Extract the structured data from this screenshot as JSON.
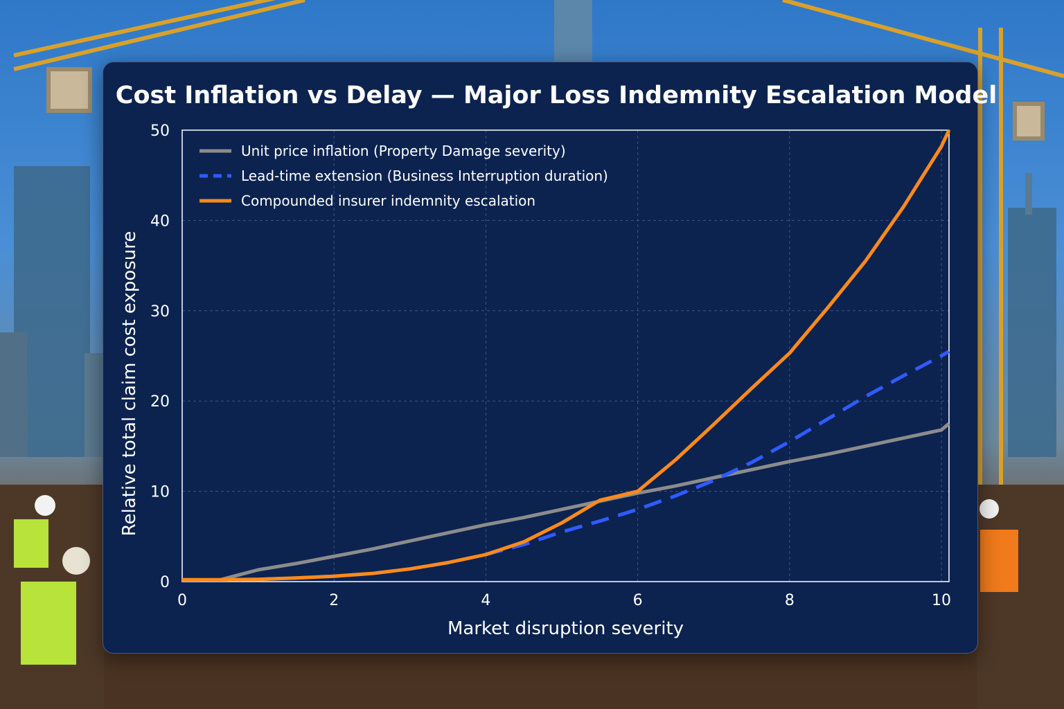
{
  "chart_data": {
    "type": "line",
    "title": "Cost Inflation vs Delay — Major Loss Indemnity Escalation Model",
    "xlabel": "Market disruption severity",
    "ylabel": "Relative total claim cost exposure",
    "xlim": [
      0,
      10.1
    ],
    "ylim": [
      0,
      50
    ],
    "xticks": [
      0,
      2,
      4,
      6,
      8,
      10
    ],
    "yticks": [
      0,
      10,
      20,
      30,
      40,
      50
    ],
    "grid": true,
    "legend_position": "top-left",
    "x": [
      0,
      0.5,
      1,
      1.5,
      2,
      2.5,
      3,
      3.5,
      4,
      4.5,
      5,
      5.5,
      6,
      6.5,
      7,
      7.5,
      8,
      8.5,
      9,
      9.5,
      10,
      10.1
    ],
    "series": [
      {
        "name": "Unit price inflation (Property Damage severity)",
        "color": "#8c8c8c",
        "style": "solid",
        "values": [
          0.2,
          0.2,
          1.3,
          2.0,
          2.8,
          3.6,
          4.5,
          5.4,
          6.3,
          7.1,
          8.0,
          8.9,
          9.8,
          10.6,
          11.5,
          12.4,
          13.3,
          14.1,
          15.0,
          15.9,
          16.8,
          17.5
        ]
      },
      {
        "name": "Lead-time extension (Business Interruption duration)",
        "color": "#2f5bff",
        "style": "dashed",
        "values": [
          0.2,
          0.2,
          0.25,
          0.4,
          0.6,
          0.9,
          1.4,
          2.1,
          3.0,
          4.1,
          5.5,
          6.7,
          8.0,
          9.5,
          11.2,
          13.2,
          15.5,
          18.0,
          20.5,
          22.8,
          25.0,
          25.5
        ]
      },
      {
        "name": "Compounded insurer indemnity escalation",
        "color": "#ff8a1a",
        "style": "solid",
        "values": [
          0.2,
          0.2,
          0.25,
          0.4,
          0.6,
          0.9,
          1.4,
          2.1,
          3.0,
          4.4,
          6.5,
          9.0,
          10.0,
          13.5,
          17.4,
          21.4,
          25.3,
          30.3,
          35.5,
          41.5,
          48.2,
          50.0
        ]
      }
    ]
  }
}
